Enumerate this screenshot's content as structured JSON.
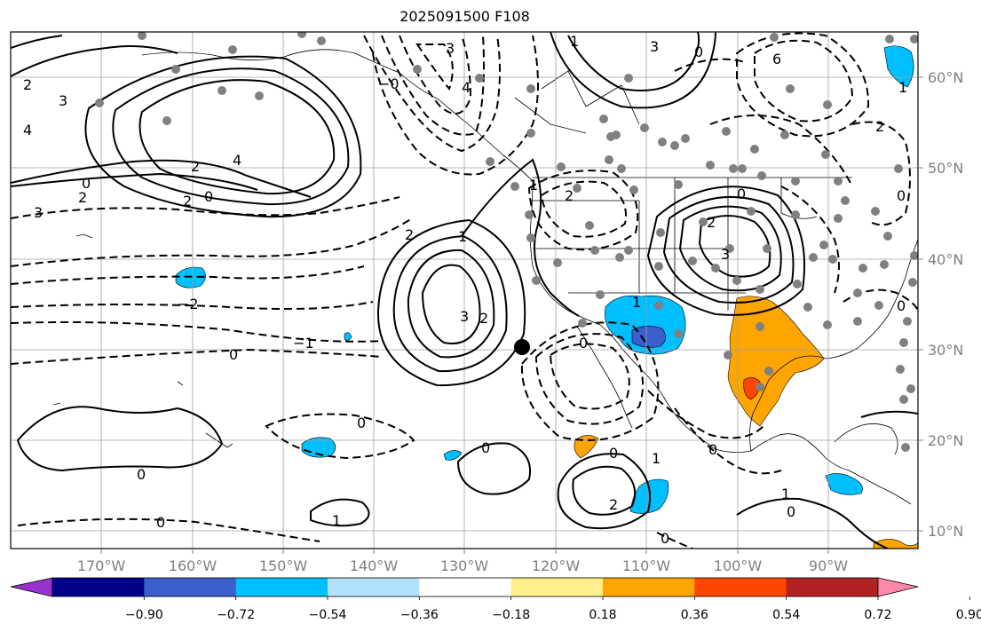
{
  "title": "2025091500 F108",
  "lon_labels": [
    "170°W",
    "160°W",
    "150°W",
    "140°W",
    "130°W",
    "120°W",
    "110°W",
    "100°W",
    "90°W"
  ],
  "lat_labels": [
    "60°N",
    "50°N",
    "40°N",
    "30°N",
    "20°N",
    "10°N"
  ],
  "colorbar": {
    "labels": [
      "−0.90",
      "−0.72",
      "−0.54",
      "−0.36",
      "−0.18",
      "0.18",
      "0.36",
      "0.54",
      "0.72",
      "0.90"
    ],
    "colors": [
      "#9932cc",
      "#00008b",
      "#3a5fcd",
      "#00bfff",
      "#b0e2ff",
      "#ffffff",
      "#fff08c",
      "#ffa500",
      "#ff4500",
      "#b22222",
      "#ff88aa"
    ]
  },
  "contour_labels": [
    "2",
    "3",
    "4",
    "2",
    "4",
    "0",
    "3",
    "2",
    "2",
    "0",
    "3",
    "4",
    "3",
    "0",
    "6",
    "1",
    "1",
    "2",
    "2",
    "3",
    "2",
    "0",
    "0",
    "2",
    "3",
    "1",
    "2",
    "1",
    "0",
    "−2",
    "−1",
    "0",
    "0",
    "0",
    "0",
    "0",
    "1",
    "0",
    "1",
    "2",
    "0",
    "0",
    "1",
    "0",
    "0",
    "1",
    "−0"
  ],
  "colors": {
    "station_dot": "#808080",
    "contour": "#000000",
    "grid": "#a0a0a0"
  }
}
